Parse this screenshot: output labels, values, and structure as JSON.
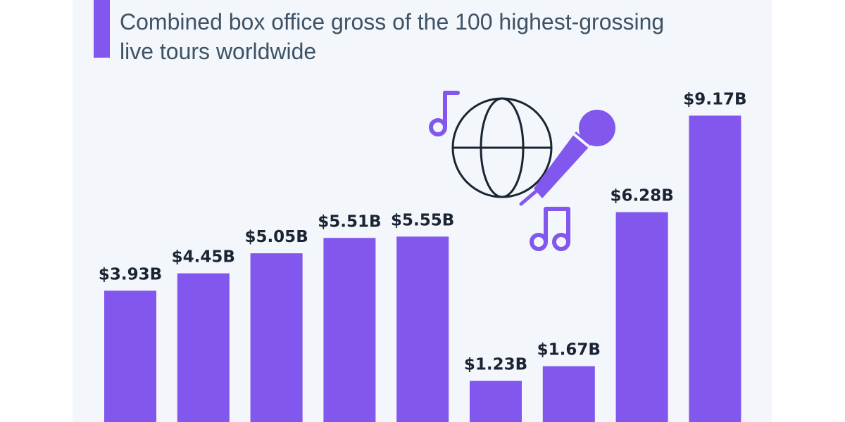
{
  "chart_data": {
    "type": "bar",
    "subtitle": "Combined box office gross of the 100 highest-grossing\nlive tours worldwide",
    "title": "",
    "xlabel": "",
    "ylabel": "",
    "categories": [],
    "values": [
      3.93,
      4.45,
      5.05,
      5.51,
      5.55,
      1.23,
      1.67,
      6.28,
      9.17
    ],
    "labels": [
      "$3.93B",
      "$4.45B",
      "$5.05B",
      "$5.51B",
      "$5.55B",
      "$1.23B",
      "$1.67B",
      "$6.28B",
      "$9.17B"
    ],
    "ylim": [
      0,
      9.5
    ],
    "grid": false,
    "bar_color": "#8257ee"
  },
  "decoration": {
    "icons": [
      "music-note-icon",
      "globe-icon",
      "microphone-icon",
      "double-music-note-icon"
    ],
    "accent_color": "#8257ee",
    "line_color": "#1a2433"
  }
}
